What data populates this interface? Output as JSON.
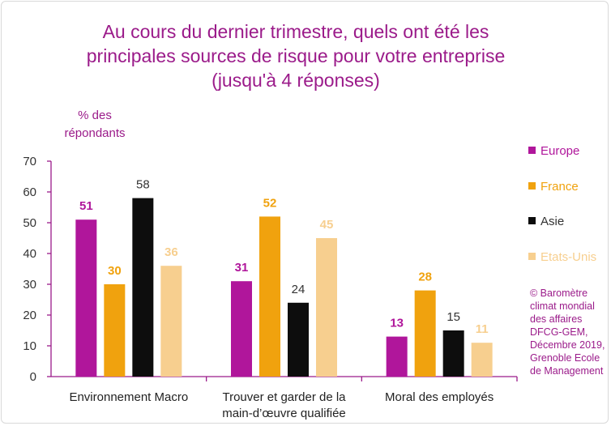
{
  "title_lines": [
    "Au cours du dernier trimestre, quels ont été les",
    "principales sources de risque pour votre entreprise",
    "(jusqu'à 4 réponses)"
  ],
  "credit": "© Baromètre climat mondial des affaires DFCG-GEM, Décembre 2019, Grenoble Ecole de Management",
  "colors": {
    "accent": "#9b1b8a",
    "axis": "#9b1b8a",
    "Europe": "#b0169b",
    "France": "#f0a20e",
    "Asie": "#0d0d0d",
    "Etats-Unis": "#f7cf8f"
  },
  "chart_data": {
    "type": "bar",
    "title": "Au cours du dernier trimestre, quels ont été les principales sources de risque pour votre entreprise (jusqu'à 4 réponses)",
    "ylabel": "% des répondants",
    "xlabel": "",
    "ylim": [
      0,
      70
    ],
    "yticks": [
      0,
      10,
      20,
      30,
      40,
      50,
      60,
      70
    ],
    "grid": false,
    "legend_position": "right",
    "categories": [
      [
        "Environnement Macro"
      ],
      [
        "Trouver et garder de la",
        "main-d’œuvre qualifiée"
      ],
      [
        "Moral des employés"
      ]
    ],
    "series": [
      {
        "name": "Europe",
        "values": [
          51,
          31,
          13
        ]
      },
      {
        "name": "France",
        "values": [
          30,
          52,
          28
        ]
      },
      {
        "name": "Asie",
        "values": [
          58,
          24,
          15
        ]
      },
      {
        "name": "Etats-Unis",
        "values": [
          36,
          45,
          11
        ]
      }
    ]
  }
}
